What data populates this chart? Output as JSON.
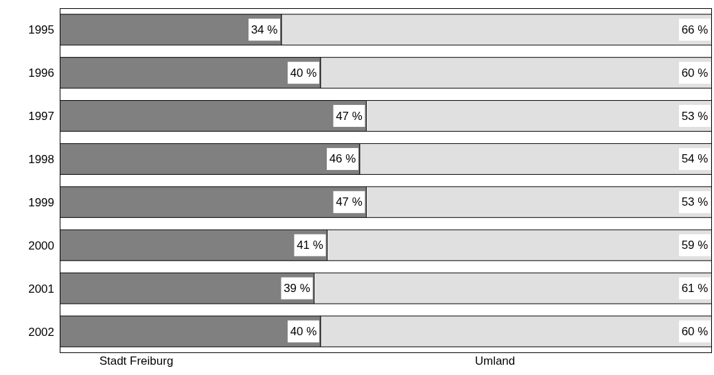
{
  "chart_data": {
    "type": "bar",
    "orientation": "horizontal",
    "stacked": true,
    "categories": [
      "1995",
      "1996",
      "1997",
      "1998",
      "1999",
      "2000",
      "2001",
      "2002"
    ],
    "series": [
      {
        "name": "Stadt Freiburg",
        "color": "#808080",
        "values": [
          34,
          40,
          47,
          46,
          47,
          41,
          39,
          40
        ],
        "value_labels": [
          "34 %",
          "40 %",
          "47 %",
          "46 %",
          "47 %",
          "41 %",
          "39 %",
          "40 %"
        ]
      },
      {
        "name": "Umland",
        "color": "#e0e0e0",
        "values": [
          66,
          60,
          53,
          54,
          53,
          59,
          61,
          60
        ],
        "value_labels": [
          "66 %",
          "60 %",
          "53 %",
          "54 %",
          "53 %",
          "59 %",
          "61 %",
          "60 %"
        ]
      }
    ],
    "xlim": [
      0,
      100
    ],
    "tick_labels": "y",
    "legend": "bottom"
  }
}
